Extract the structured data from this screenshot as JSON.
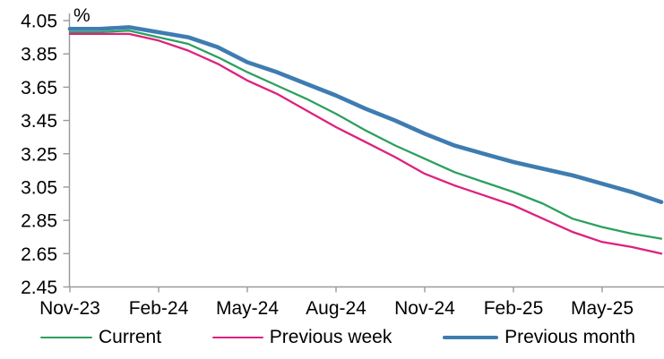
{
  "chart_data": {
    "type": "line",
    "title": "",
    "xlabel": "",
    "ylabel": "%",
    "ylim": [
      2.45,
      4.05
    ],
    "ytick_step": 0.2,
    "ytick_labels": [
      "2.45",
      "2.65",
      "2.85",
      "3.05",
      "3.25",
      "3.45",
      "3.65",
      "3.85",
      "4.05"
    ],
    "xtick_every": 3,
    "xtick_labels": [
      "Nov-23",
      "Feb-24",
      "May-24",
      "Aug-24",
      "Nov-24",
      "Feb-25",
      "May-25"
    ],
    "categories": [
      "Nov-23",
      "Dec-23",
      "Jan-24",
      "Feb-24",
      "Mar-24",
      "Apr-24",
      "May-24",
      "Jun-24",
      "Jul-24",
      "Aug-24",
      "Sep-24",
      "Oct-24",
      "Nov-24",
      "Dec-24",
      "Jan-25",
      "Feb-25",
      "Mar-25",
      "Apr-25",
      "May-25",
      "Jun-25",
      "Jul-25"
    ],
    "grid": false,
    "legend_position": "bottom",
    "axis_color": "#9a9a9a",
    "series": [
      {
        "name": "Current",
        "color": "#2CA05F",
        "values": [
          3.98,
          3.98,
          3.99,
          3.95,
          3.91,
          3.83,
          3.74,
          3.66,
          3.58,
          3.49,
          3.39,
          3.3,
          3.22,
          3.14,
          3.08,
          3.02,
          2.95,
          2.86,
          2.81,
          2.77,
          2.74
        ]
      },
      {
        "name": "Previous week",
        "color": "#DE217D",
        "values": [
          3.97,
          3.97,
          3.97,
          3.93,
          3.87,
          3.79,
          3.69,
          3.61,
          3.51,
          3.41,
          3.32,
          3.23,
          3.13,
          3.06,
          3.0,
          2.94,
          2.86,
          2.78,
          2.72,
          2.69,
          2.65
        ]
      },
      {
        "name": "Previous month",
        "color": "#3E7CB1",
        "values": [
          4.0,
          4.0,
          4.01,
          3.98,
          3.95,
          3.89,
          3.8,
          3.74,
          3.67,
          3.6,
          3.52,
          3.45,
          3.37,
          3.3,
          3.25,
          3.2,
          3.16,
          3.12,
          3.07,
          3.02,
          2.96
        ]
      }
    ]
  }
}
